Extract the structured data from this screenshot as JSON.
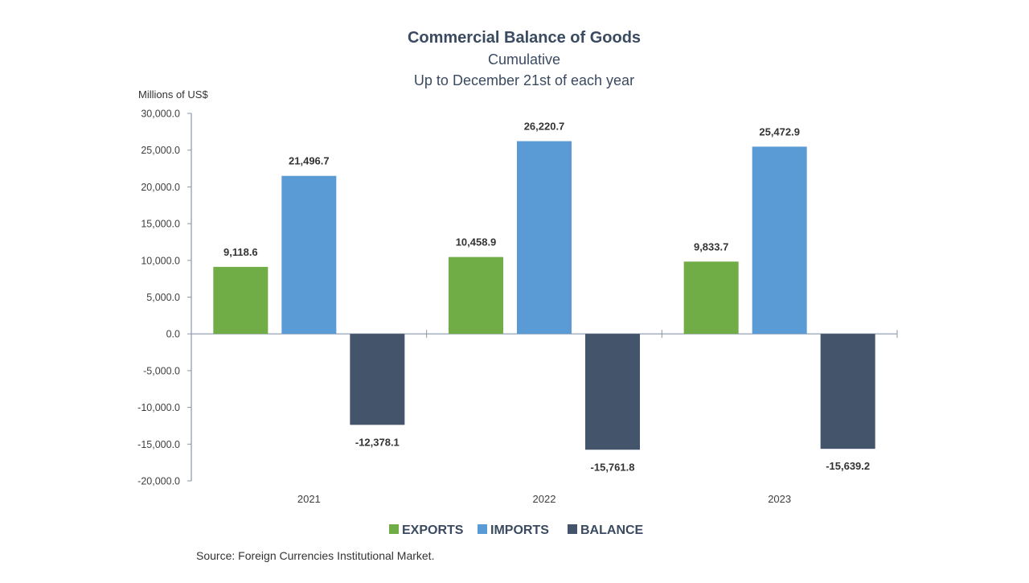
{
  "chart_data": {
    "type": "bar",
    "title": "Commercial Balance of Goods",
    "subtitle_lines": [
      "Cumulative",
      "Up to December 21st of each year"
    ],
    "ylabel": "Millions of US$",
    "xlabel": "",
    "categories": [
      "2021",
      "2022",
      "2023"
    ],
    "series": [
      {
        "name": "EXPORTS",
        "color": "#70ad47",
        "values": [
          9118.6,
          10458.9,
          9833.7
        ]
      },
      {
        "name": "IMPORTS",
        "color": "#5b9bd5",
        "values": [
          21496.7,
          26220.7,
          25472.9
        ]
      },
      {
        "name": "BALANCE",
        "color": "#44546a",
        "values": [
          -12378.1,
          -15761.8,
          -15639.2
        ]
      }
    ],
    "data_labels": [
      [
        "9,118.6",
        "10,458.9",
        "9,833.7"
      ],
      [
        "21,496.7",
        "26,220.7",
        "25,472.9"
      ],
      [
        "-12,378.1",
        "-15,761.8",
        "-15,639.2"
      ]
    ],
    "ylim": [
      -20000,
      30000
    ],
    "ytick_step": 5000,
    "ytick_labels": [
      "30,000.0",
      "25,000.0",
      "20,000.0",
      "15,000.0",
      "10,000.0",
      "5,000.0",
      "0.0",
      "-5,000.0",
      "-10,000.0",
      "-15,000.0",
      "-20,000.0"
    ],
    "grid": false,
    "legend_position": "bottom",
    "source": "Source: Foreign Currencies Institutional Market."
  },
  "colors": {
    "axis": "#8a96a8",
    "title": "#3a4a60"
  }
}
